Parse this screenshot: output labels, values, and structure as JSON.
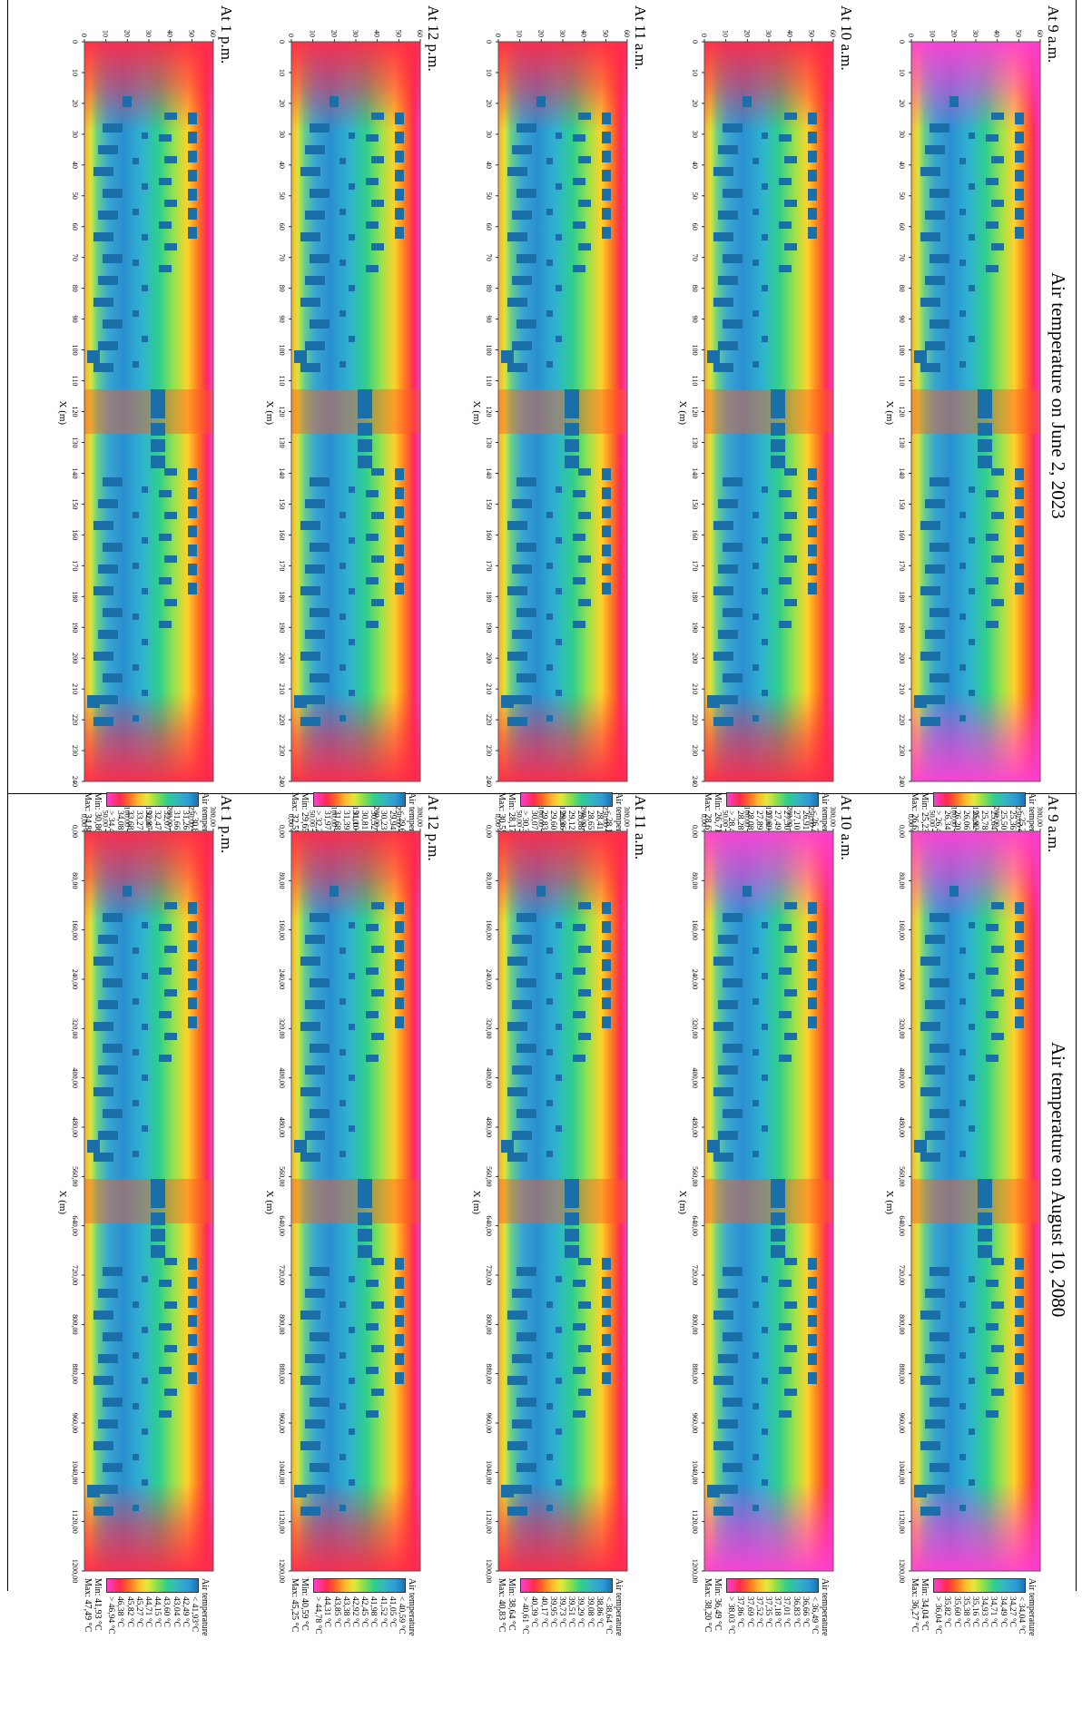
{
  "header_left": "Air temperature on June 2, 2023",
  "header_right": "Air temperature on August 10, 2080",
  "legend_title": "Air temperature",
  "x_unit": "X (m)",
  "june": {
    "y_ticks": [
      "0",
      "10",
      "20",
      "30",
      "40",
      "50",
      "60"
    ],
    "x_ticks": [
      "0",
      "10",
      "20",
      "30",
      "40",
      "50",
      "60",
      "70",
      "80",
      "90",
      "100",
      "110",
      "120",
      "130",
      "140",
      "150",
      "160",
      "170",
      "180",
      "190",
      "200",
      "210",
      "220",
      "230",
      "240"
    ],
    "panels": [
      {
        "time": "At 9 a.m.",
        "values": [
          "< 25,23 °C",
          "25,36 °C",
          "25,50 °C",
          "25,64 °C",
          "25,78 °C",
          "25,92 °C",
          "26,06 °C",
          "26,20 °C",
          "26,34 °C",
          "> 26,48 °C"
        ],
        "min": "Min: 25,23 °C",
        "max": "Max: 26,62 °C"
      },
      {
        "time": "At 10 a.m.",
        "values": [
          "< 26,71 °C",
          "26,91 °C",
          "27,10 °C",
          "27,30 °C",
          "27,49 °C",
          "27,69 °C",
          "27,89 °C",
          "28,08 °C",
          "28,28 °C",
          "> 28,47 °C"
        ],
        "min": "Min: 26,71 °C",
        "max": "Max: 28,67 °C"
      },
      {
        "time": "At 11 a.m.",
        "values": [
          "< 28,17 °C",
          "28,41 °C",
          "28,65 °C",
          "28,88 °C",
          "29,12 °C",
          "29,36 °C",
          "29,60 °C",
          "29,83 °C",
          "30,07 °C",
          "> 30,31 °C"
        ],
        "min": "Min: 28,17 °C",
        "max": "Max: 30,55 °C"
      },
      {
        "time": "At 12 p.m.",
        "values": [
          "< 29,65 °C",
          "29,94 °C",
          "30,23 °C",
          "30,52 °C",
          "30,81 °C",
          "31,10 °C",
          "31,39 °C",
          "31,68 °C",
          "31,97 °C",
          "> 32,26 °C"
        ],
        "min": "Min: 29,65 °C",
        "max": "Max: 32,55 °C"
      },
      {
        "time": "At 1 p.m.",
        "values": [
          "< 30,86 °C",
          "31,26 °C",
          "31,66 °C",
          "32,07 °C",
          "32,47 °C",
          "32,87 °C",
          "33,27 °C",
          "33,68 °C",
          "34,08 °C",
          "> 34,48 °C"
        ],
        "min": "Min: 30,86 °C",
        "max": "Max: 34,88 °C"
      }
    ]
  },
  "august": {
    "y_ticks": [
      "0,00",
      "50,00",
      "100,00",
      "150,00",
      "200,00",
      "250,00",
      "300,00"
    ],
    "x_ticks": [
      "0,00",
      "80,00",
      "160,00",
      "240,00",
      "320,00",
      "400,00",
      "480,00",
      "560,00",
      "640,00",
      "720,00",
      "800,00",
      "880,00",
      "960,00",
      "1040,00",
      "1120,00",
      "1200,00"
    ],
    "panels": [
      {
        "time": "At 9 a.m.",
        "values": [
          "< 34,04 °C",
          "34,27 °C",
          "34,49 °C",
          "34,71 °C",
          "34,93 °C",
          "35,16 °C",
          "35,38 °C",
          "35,60 °C",
          "35,82 °C",
          "> 36,04 °C"
        ],
        "min": "Min: 34,04 °C",
        "max": "Max: 36,27 °C"
      },
      {
        "time": "At 10 a.m.",
        "values": [
          "< 36,49 °C",
          "36,66 °C",
          "36,83 °C",
          "37,01 °C",
          "37,18 °C",
          "37,35 °C",
          "37,52 °C",
          "37,69 °C",
          "37,86 °C",
          "> 38,03 °C"
        ],
        "min": "Min: 36,49 °C",
        "max": "Max: 38,20 °C"
      },
      {
        "time": "At 11 a.m.",
        "values": [
          "< 38,64 °C",
          "38,86 °C",
          "39,08 °C",
          "39,29 °C",
          "39,51 °C",
          "39,73 °C",
          "39,95 °C",
          "40,17 °C",
          "40,39 °C",
          "> 40,61 °C"
        ],
        "min": "Min: 38,64 °C",
        "max": "Max: 40,83 °C"
      },
      {
        "time": "At 12 p.m.",
        "values": [
          "< 40,59 °C",
          "41,05 °C",
          "41,52 °C",
          "41,98 °C",
          "42,45 °C",
          "42,92 °C",
          "43,38 °C",
          "43,85 °C",
          "44,31 °C",
          "> 44,78 °C"
        ],
        "min": "Min: 40,59 °C",
        "max": "Max: 45,25 °C"
      },
      {
        "time": "At 1 p.m.",
        "values": [
          "< 41,93°C",
          "42,49 °C",
          "43,04 °C",
          "43,60 °C",
          "44,15 °C",
          "44,71 °C",
          "45,27 °C",
          "45,82 °C",
          "46,38 °C",
          "> 46,94 °C"
        ],
        "min": "Min: 41,93 °C",
        "max": "Max: 47,49 °C"
      }
    ]
  }
}
